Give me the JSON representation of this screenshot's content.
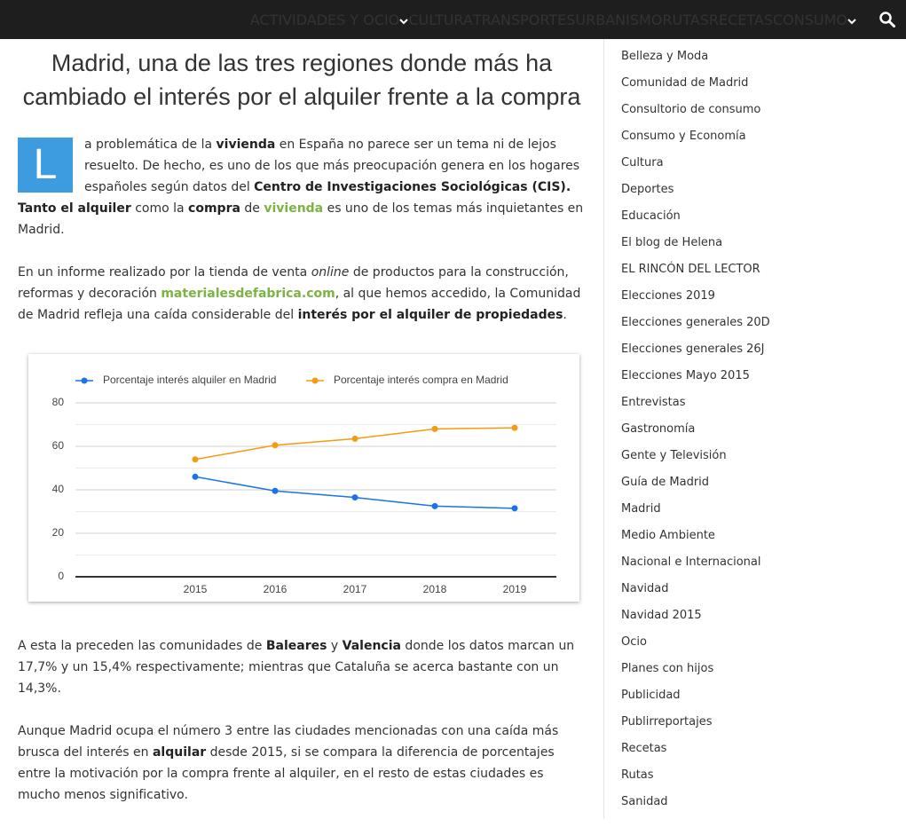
{
  "nav": {
    "items": [
      {
        "label": "ACTIVIDADES Y OCIO",
        "dropdown": true
      },
      {
        "label": "CULTURA",
        "dropdown": false
      },
      {
        "label": "TRANSPORTES",
        "dropdown": false
      },
      {
        "label": "URBANISMO",
        "dropdown": false
      },
      {
        "label": "RUTAS",
        "dropdown": false
      },
      {
        "label": "RECETAS",
        "dropdown": false
      },
      {
        "label": "CONSUMO",
        "dropdown": true
      }
    ]
  },
  "article": {
    "title": "Madrid, una de las tres regiones donde más ha cambiado el interés por el alquiler frente a la compra",
    "drop_cap": "L",
    "paragraphs": [
      [
        {
          "text": "a problemática de la "
        },
        {
          "text": "vivienda",
          "bold": true
        },
        {
          "text": " en España no parece ser un tema ni de lejos resuelto. De hecho, es uno de los que más preocupación genera en los hogares españoles según datos del "
        },
        {
          "text": "Centro de Investigaciones Sociológicas (CIS). Tanto el alquiler",
          "bold": true
        },
        {
          "text": " como la "
        },
        {
          "text": "compra",
          "bold": true
        },
        {
          "text": " de "
        },
        {
          "text": "vivienda",
          "link": true
        },
        {
          "text": " es uno de los temas más inquietantes en Madrid."
        }
      ],
      [
        {
          "text": "En un informe realizado por la tienda de venta "
        },
        {
          "text": "online",
          "italic": true
        },
        {
          "text": " de productos para la construcción, reformas y decoración "
        },
        {
          "text": "materialesdefabrica.com",
          "link": true
        },
        {
          "text": ", al que hemos accedido, la Comunidad de Madrid refleja una caída considerable del "
        },
        {
          "text": "interés por el alquiler de propiedades",
          "bold": true
        },
        {
          "text": "."
        }
      ],
      [
        {
          "text": "A esta la preceden las comunidades de "
        },
        {
          "text": "Baleares",
          "bold": true
        },
        {
          "text": " y "
        },
        {
          "text": "Valencia",
          "bold": true
        },
        {
          "text": " donde los datos marcan un 17,7% y un 15,4% respectivamente; mientras que Cataluña se acerca bastante con un 14,3%."
        }
      ],
      [
        {
          "text": "Aunque Madrid ocupa el número 3 entre las ciudades mencionadas con una caída más brusca del interés en "
        },
        {
          "text": "alquilar",
          "bold": true
        },
        {
          "text": " desde 2015, si se compara la diferencia de porcentajes entre la motivación por la compra frente al alquiler, en el resto de estas ciudades es mucho menos significativo."
        }
      ]
    ]
  },
  "chart_data": {
    "type": "line",
    "categories": [
      "2015",
      "2016",
      "2017",
      "2018",
      "2019"
    ],
    "series": [
      {
        "name": "Porcentaje interés alquiler en Madrid",
        "color": "#1a73e8",
        "values": [
          46,
          39.5,
          36.5,
          32.5,
          31.5
        ]
      },
      {
        "name": "Porcentaje interés compra en Madrid",
        "color": "#f39c12",
        "values": [
          54,
          60.5,
          63.5,
          68,
          68.5
        ]
      }
    ],
    "ylim": [
      0,
      80
    ],
    "yticks": [
      0,
      20,
      40,
      60,
      80
    ],
    "yminorticks": [
      10,
      30,
      50,
      70
    ],
    "grid": true,
    "legend": "top"
  },
  "sidebar": {
    "categories": [
      "Belleza y Moda",
      "Comunidad de Madrid",
      "Consultorio de consumo",
      "Consumo y Economía",
      "Cultura",
      "Deportes",
      "Educación",
      "El blog de Helena",
      "EL RINCÓN DEL LECTOR",
      "Elecciones 2019",
      "Elecciones generales 20D",
      "Elecciones generales 26J",
      "Elecciones Mayo 2015",
      "Entrevistas",
      "Gastronomía",
      "Gente y Televisión",
      "Guía de Madrid",
      "Madrid",
      "Medio Ambiente",
      "Nacional e Internacional",
      "Navidad",
      "Navidad 2015",
      "Ocio",
      "Planes con hijos",
      "Publicidad",
      "Publirreportajes",
      "Recetas",
      "Rutas",
      "Sanidad"
    ]
  }
}
